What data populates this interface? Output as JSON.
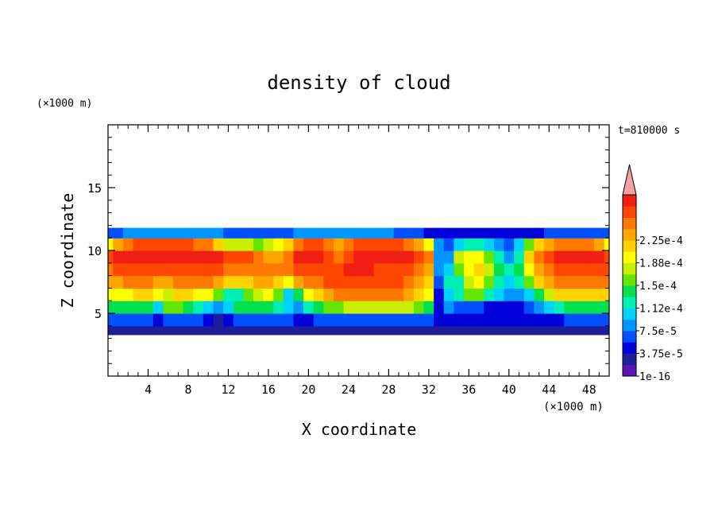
{
  "chart_data": {
    "type": "heatmap",
    "title": "density of cloud",
    "xlabel": "X coordinate",
    "ylabel": "Z coordinate",
    "x_unit": "(×1000 m)",
    "y_unit": "(×1000 m)",
    "time_label": "t=810000 s",
    "xlim": [
      0,
      50
    ],
    "ylim": [
      0,
      20
    ],
    "x_ticks": [
      4,
      8,
      12,
      16,
      20,
      24,
      28,
      32,
      36,
      40,
      44,
      48
    ],
    "y_ticks": [
      5,
      10,
      15
    ],
    "colorbar": {
      "labels": [
        "1e-16",
        "3.75e-5",
        "7.5e-5",
        "1.12e-4",
        "1.5e-4",
        "1.88e-4",
        "2.25e-4"
      ],
      "colors": [
        "#5a14b4",
        "#1e1e9a",
        "#0000d8",
        "#0050ff",
        "#0096ff",
        "#00d2ff",
        "#00f0b4",
        "#00e050",
        "#64e600",
        "#c8f000",
        "#ffff00",
        "#ffd200",
        "#ffa500",
        "#ff7800",
        "#ff4600",
        "#f01e14"
      ],
      "extend_color": "#f4a3a3"
    },
    "layer_z_range": [
      3.3,
      11.8
    ],
    "field": {
      "x": [
        0,
        1,
        2,
        3,
        4,
        5,
        6,
        7,
        8,
        9,
        10,
        11,
        12,
        13,
        14,
        15,
        16,
        17,
        18,
        19,
        20,
        21,
        22,
        23,
        24,
        25,
        26,
        27,
        28,
        29,
        30,
        31,
        32,
        33,
        34,
        35,
        36,
        37,
        38,
        39,
        40,
        41,
        42,
        43,
        44,
        45,
        46,
        47,
        48,
        49,
        50
      ],
      "z": [
        3.5,
        4.5,
        5.5,
        6.5,
        7.5,
        8.5,
        9.5,
        10.5,
        11.5
      ],
      "levels": [
        [
          1,
          1,
          1,
          1,
          1,
          1,
          1,
          1,
          1,
          1,
          1,
          1,
          1,
          1,
          1,
          1,
          1,
          1,
          1,
          1,
          1,
          1,
          1,
          1,
          1,
          1,
          1,
          1,
          1,
          1,
          1,
          1,
          1,
          1,
          1,
          1,
          1,
          1,
          1,
          1,
          1,
          1,
          1,
          1,
          1,
          1,
          1,
          1,
          1,
          1,
          1
        ],
        [
          3,
          3,
          3,
          3,
          3,
          2,
          3,
          3,
          3,
          3,
          2,
          1,
          2,
          3,
          3,
          3,
          3,
          3,
          3,
          2,
          2,
          3,
          3,
          3,
          3,
          3,
          3,
          3,
          3,
          3,
          3,
          3,
          3,
          2,
          2,
          2,
          2,
          2,
          2,
          2,
          2,
          2,
          2,
          2,
          2,
          2,
          3,
          3,
          3,
          3,
          3
        ],
        [
          7,
          7,
          7,
          7,
          7,
          5,
          8,
          8,
          7,
          6,
          5,
          4,
          5,
          7,
          7,
          7,
          7,
          6,
          5,
          4,
          6,
          7,
          8,
          8,
          9,
          9,
          9,
          9,
          9,
          9,
          9,
          8,
          7,
          2,
          4,
          3,
          3,
          3,
          2,
          2,
          2,
          2,
          3,
          4,
          5,
          6,
          7,
          7,
          7,
          7,
          7
        ],
        [
          10,
          10,
          10,
          11,
          11,
          10,
          9,
          11,
          11,
          10,
          10,
          8,
          6,
          6,
          8,
          9,
          10,
          8,
          5,
          7,
          10,
          11,
          12,
          13,
          13,
          13,
          13,
          13,
          13,
          13,
          12,
          11,
          10,
          2,
          5,
          6,
          8,
          8,
          6,
          5,
          4,
          4,
          5,
          7,
          9,
          11,
          11,
          11,
          11,
          11,
          11
        ],
        [
          12,
          12,
          13,
          13,
          13,
          12,
          12,
          13,
          13,
          13,
          13,
          12,
          11,
          11,
          11,
          12,
          12,
          11,
          10,
          12,
          13,
          13,
          14,
          14,
          14,
          14,
          14,
          14,
          14,
          14,
          13,
          12,
          11,
          3,
          6,
          6,
          9,
          10,
          8,
          6,
          5,
          6,
          8,
          11,
          12,
          13,
          13,
          13,
          13,
          13,
          13
        ],
        [
          13,
          14,
          14,
          14,
          14,
          14,
          14,
          14,
          14,
          14,
          14,
          14,
          13,
          13,
          13,
          13,
          13,
          13,
          13,
          14,
          14,
          14,
          14,
          14,
          15,
          15,
          15,
          14,
          14,
          14,
          14,
          13,
          12,
          4,
          5,
          8,
          10,
          11,
          9,
          7,
          6,
          7,
          10,
          12,
          13,
          14,
          14,
          14,
          14,
          14,
          14
        ],
        [
          14,
          15,
          15,
          15,
          15,
          15,
          15,
          15,
          15,
          15,
          15,
          15,
          14,
          14,
          14,
          13,
          12,
          12,
          13,
          15,
          15,
          15,
          14,
          13,
          14,
          15,
          15,
          15,
          15,
          15,
          15,
          14,
          13,
          4,
          4,
          9,
          10,
          10,
          8,
          6,
          4,
          6,
          11,
          13,
          14,
          15,
          15,
          15,
          15,
          15,
          14
        ],
        [
          10,
          12,
          13,
          14,
          14,
          14,
          14,
          14,
          14,
          13,
          13,
          11,
          9,
          9,
          9,
          8,
          9,
          10,
          11,
          13,
          14,
          14,
          13,
          12,
          13,
          14,
          14,
          14,
          14,
          14,
          13,
          12,
          10,
          4,
          3,
          5,
          6,
          6,
          5,
          4,
          3,
          5,
          8,
          11,
          12,
          13,
          13,
          13,
          13,
          12,
          10
        ],
        [
          3,
          3,
          4,
          4,
          4,
          4,
          4,
          4,
          4,
          4,
          4,
          4,
          3,
          3,
          3,
          3,
          3,
          3,
          3,
          4,
          4,
          4,
          4,
          4,
          4,
          4,
          4,
          4,
          4,
          3,
          3,
          3,
          2,
          2,
          2,
          2,
          2,
          2,
          2,
          2,
          2,
          2,
          2,
          2,
          3,
          3,
          3,
          3,
          3,
          3,
          3
        ]
      ]
    }
  }
}
